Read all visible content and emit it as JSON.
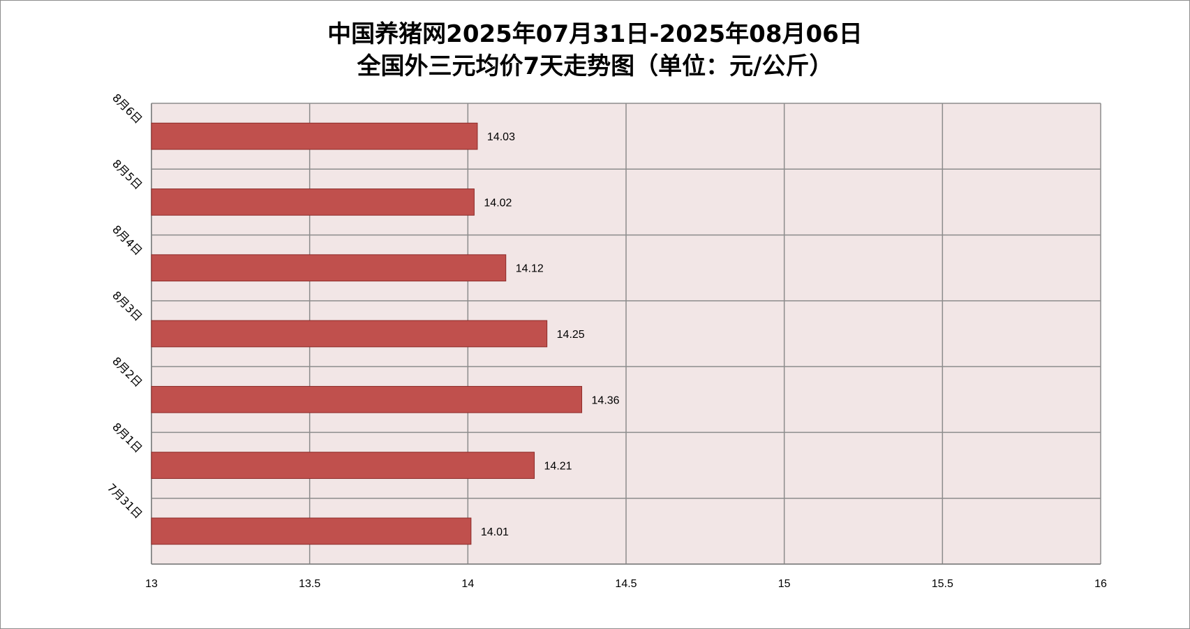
{
  "chart_data": {
    "type": "bar",
    "orientation": "horizontal",
    "title": [
      "中国养猪网2025年07月31日-2025年08月06日",
      "全国外三元均价7天走势图（单位：元/公斤）"
    ],
    "categories": [
      "8月6日",
      "8月5日",
      "8月4日",
      "8月3日",
      "8月2日",
      "8月1日",
      "7月31日"
    ],
    "series": [
      {
        "values": [
          14.03,
          14.02,
          14.12,
          14.25,
          14.36,
          14.21,
          14.01
        ]
      }
    ],
    "xlim": [
      13,
      16
    ],
    "xticks": [
      "13",
      "13.5",
      "14",
      "14.5",
      "15",
      "15.5",
      "16"
    ],
    "grid": true,
    "legend": "none",
    "colors": {
      "bar_fill": "#c0504d",
      "bar_stroke": "#8c2a28",
      "plot_bg": "#f2e6e6",
      "grid": "#8c8c8c"
    }
  }
}
